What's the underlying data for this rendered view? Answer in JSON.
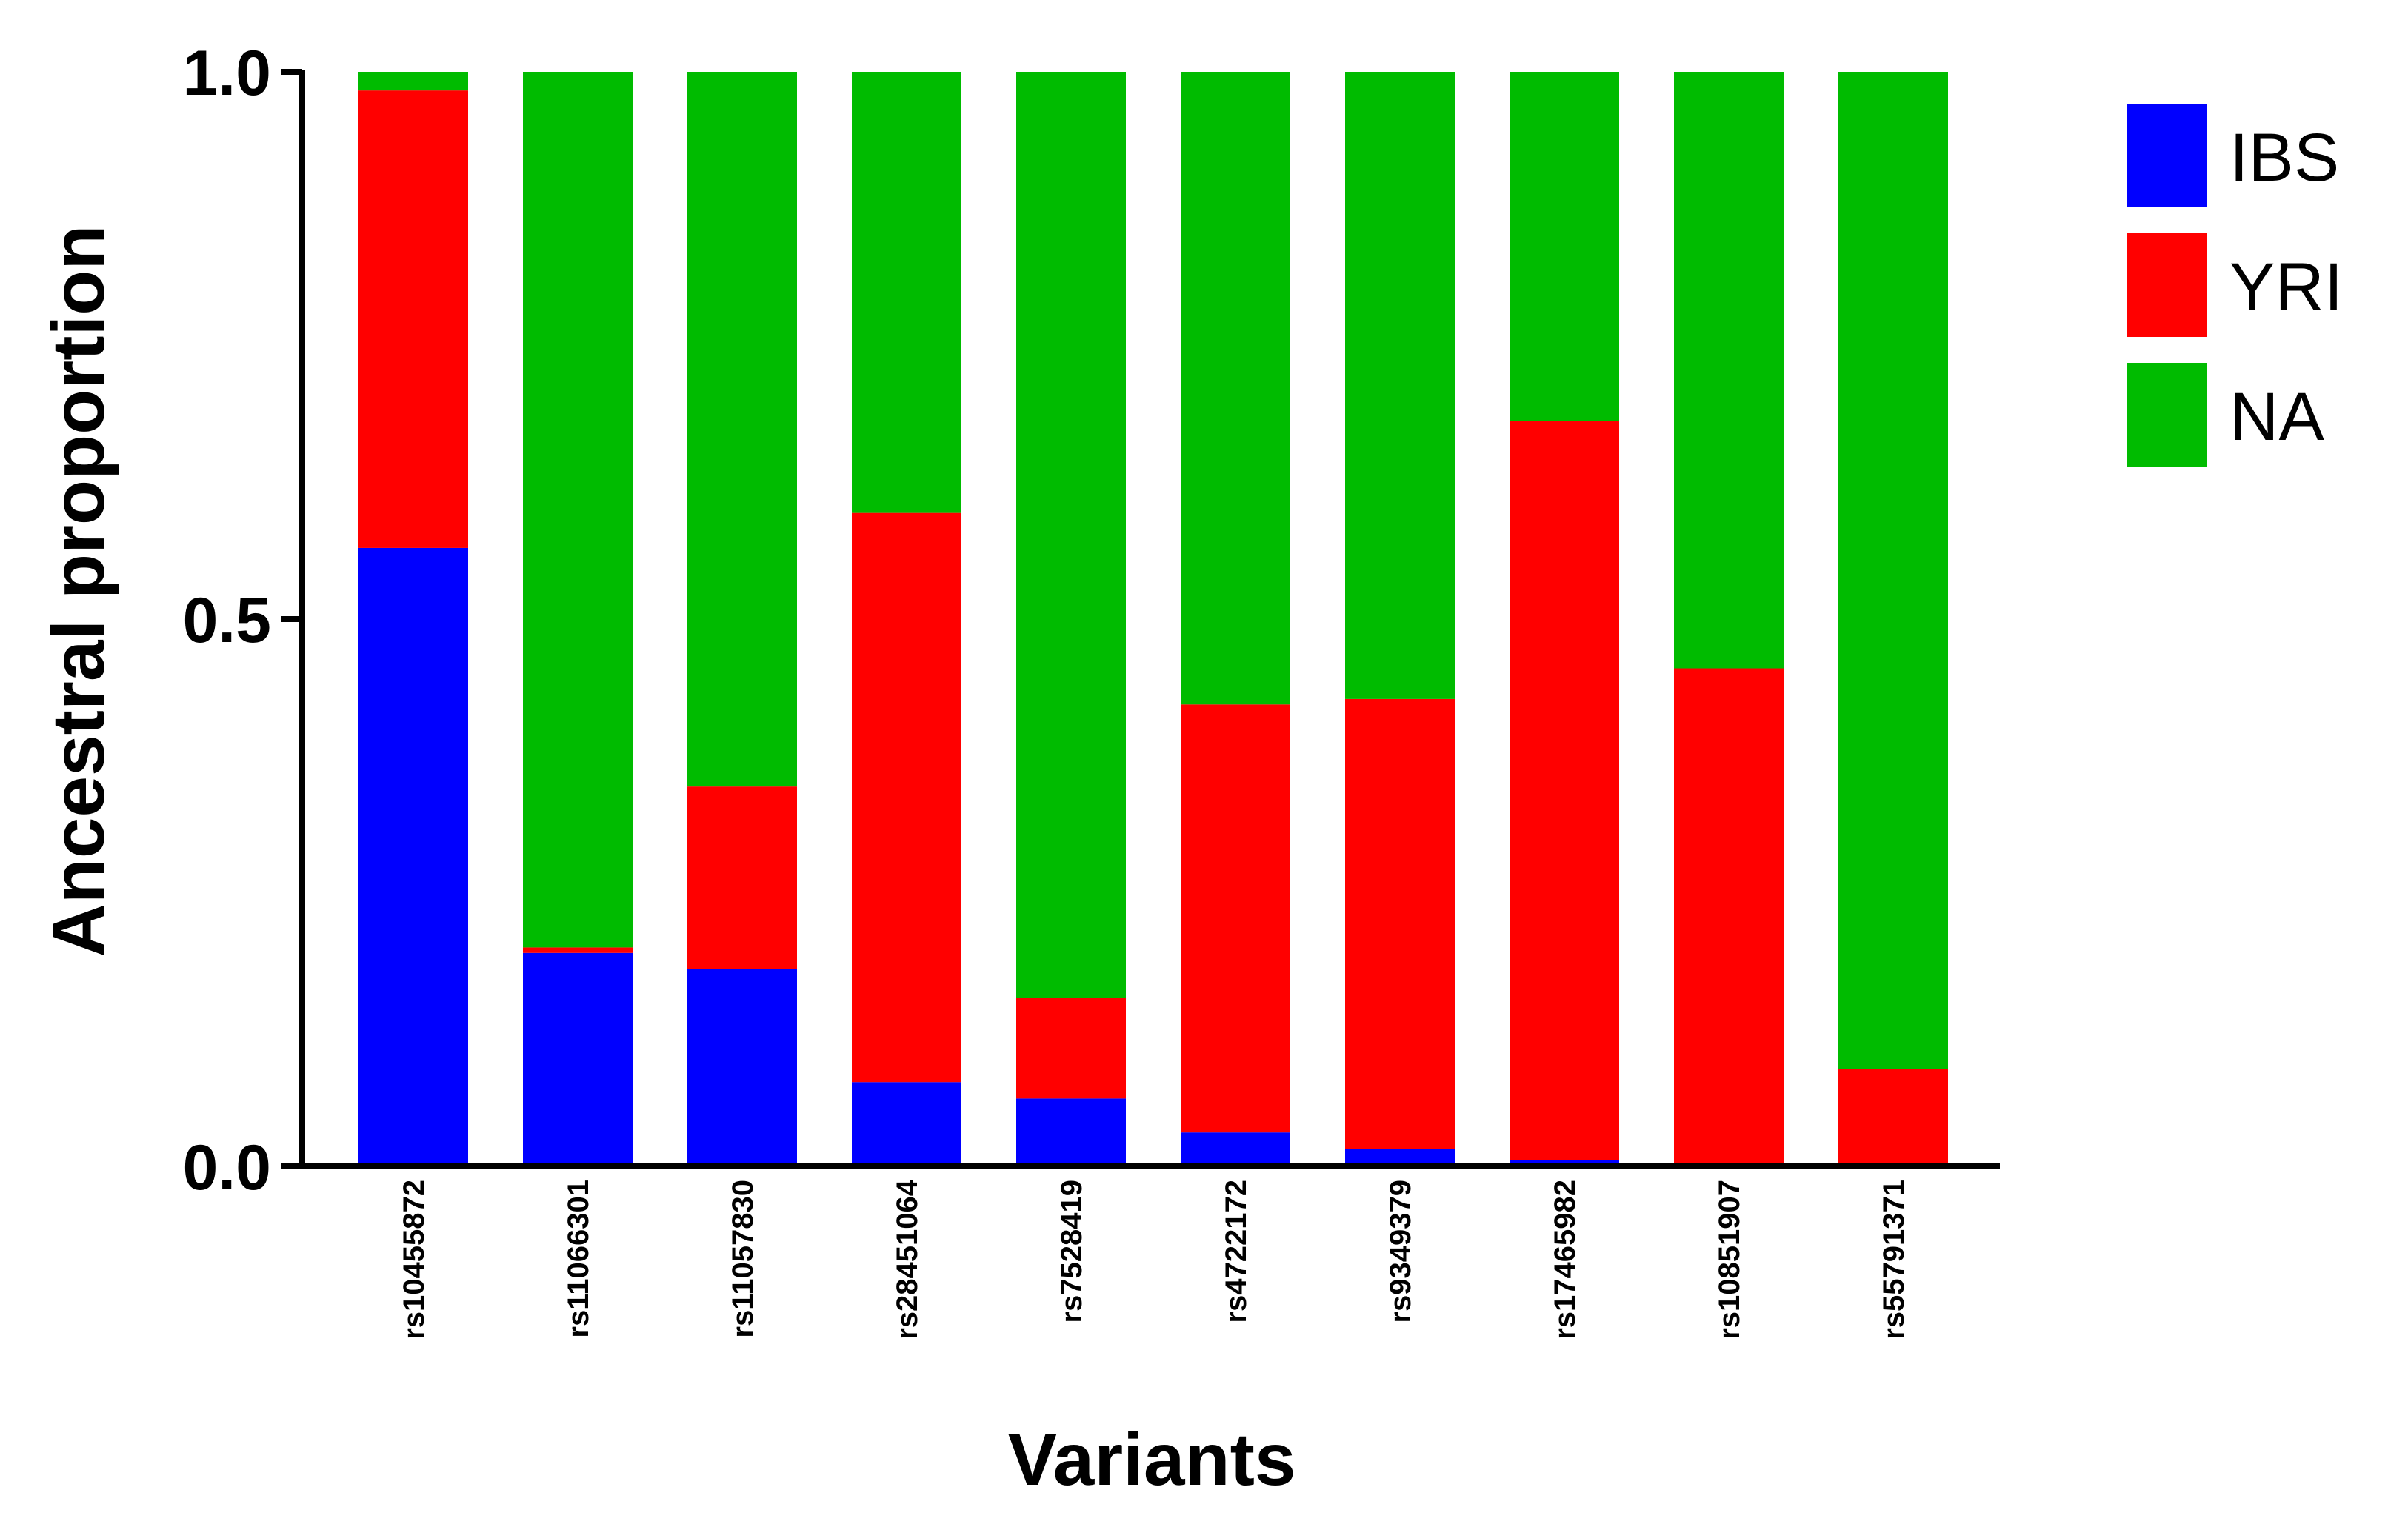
{
  "chart_data": {
    "type": "bar",
    "stacked": true,
    "title": "",
    "xlabel": "Variants",
    "ylabel": "Ancestral proportion",
    "ylim": [
      0,
      1
    ],
    "yticks": [
      "0.0",
      "0.5",
      "1.0"
    ],
    "ytick_values": [
      0,
      0.5,
      1
    ],
    "legend_position": "top-right",
    "categories": [
      "rs10455872",
      "rs11066301",
      "rs11057830",
      "rs28451064",
      "rs7528419",
      "rs4722172",
      "rs9349379",
      "rs17465982",
      "rs10851907",
      "rs55791371"
    ],
    "series": [
      {
        "name": "IBS",
        "color": "#0000ff",
        "values": [
          0.565,
          0.195,
          0.18,
          0.077,
          0.062,
          0.031,
          0.016,
          0.006,
          0.0,
          0.0
        ]
      },
      {
        "name": "YRI",
        "color": "#ff0000",
        "values": [
          0.418,
          0.005,
          0.167,
          0.52,
          0.092,
          0.391,
          0.411,
          0.675,
          0.455,
          0.089
        ]
      },
      {
        "name": "NA",
        "color": "#00bb00",
        "values": [
          0.017,
          0.8,
          0.653,
          0.403,
          0.846,
          0.578,
          0.573,
          0.319,
          0.545,
          0.911
        ]
      }
    ]
  }
}
